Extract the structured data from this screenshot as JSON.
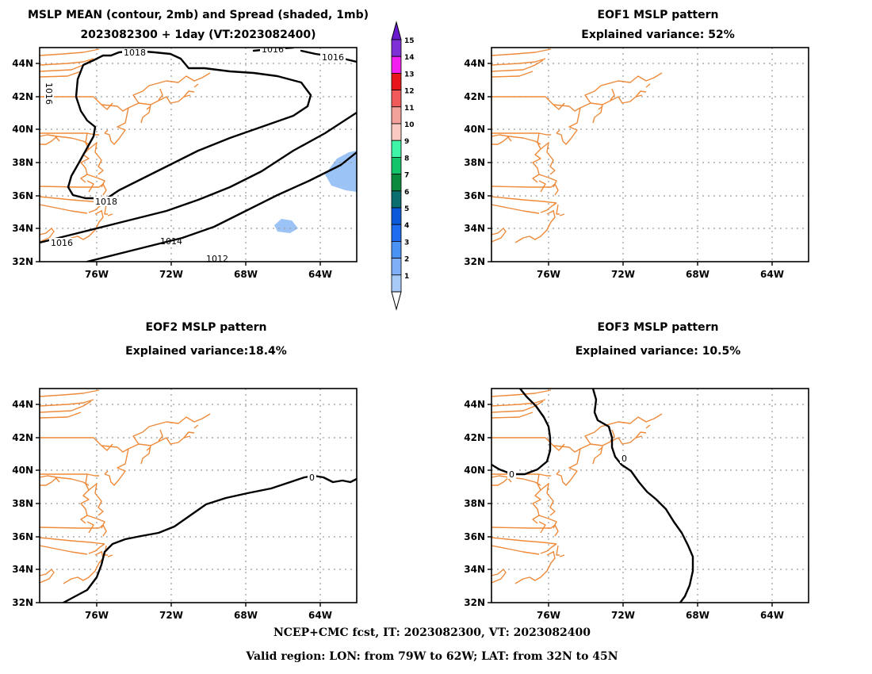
{
  "panels": [
    {
      "id": "mean",
      "title_lines": [
        "MSLP MEAN (contour, 2mb) and Spread (shaded, 1mb)",
        "2023082300 + 1day (VT:2023082400)"
      ],
      "contour_labels": [
        "1018",
        "1016",
        "1016",
        "1016",
        "1018",
        "1014",
        "1012",
        "1016"
      ]
    },
    {
      "id": "eof1",
      "title_lines": [
        "EOF1 MSLP pattern",
        "Explained variance: 52%"
      ],
      "contour_labels": []
    },
    {
      "id": "eof2",
      "title_lines": [
        "EOF2 MSLP pattern",
        "Explained variance:18.4%"
      ],
      "contour_labels": [
        "0"
      ]
    },
    {
      "id": "eof3",
      "title_lines": [
        "EOF3 MSLP pattern",
        "Explained variance: 10.5%"
      ],
      "contour_labels": [
        "0",
        "0"
      ]
    }
  ],
  "axes": {
    "lat_labels": [
      "44N",
      "42N",
      "40N",
      "38N",
      "36N",
      "34N",
      "32N"
    ],
    "lon_labels": [
      "76W",
      "72W",
      "68W",
      "64W"
    ],
    "lat_range": [
      32,
      45
    ],
    "lon_range": [
      -78,
      -61
    ]
  },
  "colorbar": {
    "levels": [
      "15",
      "14",
      "13",
      "12",
      "11",
      "10",
      "9",
      "8",
      "7",
      "6",
      "5",
      "4",
      "3",
      "2",
      "1"
    ],
    "colors": [
      "#7e2fd6",
      "#f21ff0",
      "#e8161b",
      "#f15a5a",
      "#f2a29a",
      "#f9c9c2",
      "#3ff4a6",
      "#14c46a",
      "#0a8a3c",
      "#0b6f6f",
      "#0c5ad8",
      "#1e6cf0",
      "#4b92f5",
      "#7fb0f7",
      "#a7caf9"
    ],
    "top_cap_color": "#6a1bd0",
    "bottom_cap_color": "#ffffff"
  },
  "spread_color": "#9cc3f5",
  "footer": {
    "line1": "NCEP+CMC fcst, IT: 2023082300, VT: 2023082400",
    "line2": "Valid region: LON: from 79W to 62W; LAT: from 32N to 45N"
  }
}
